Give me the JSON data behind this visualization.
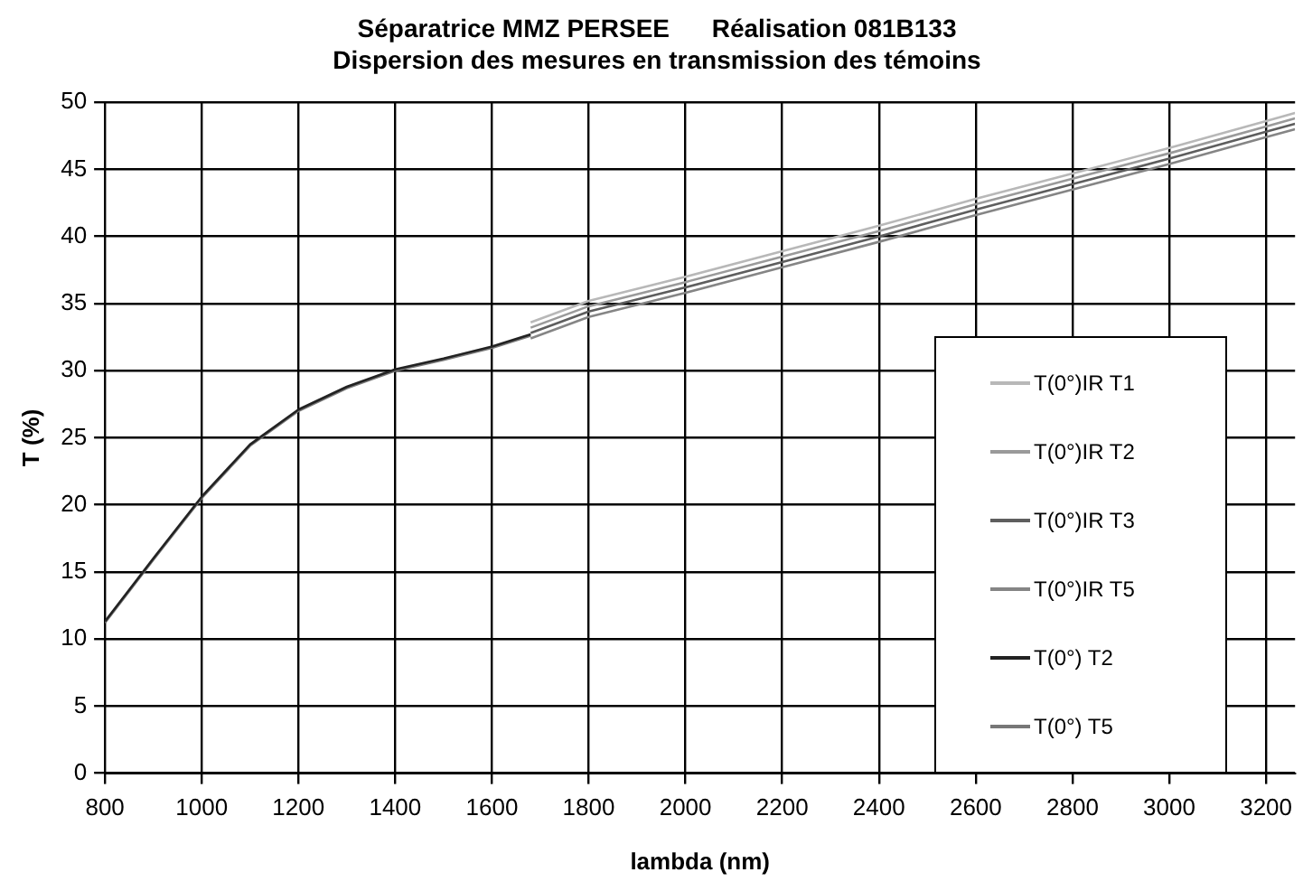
{
  "chart_data": {
    "type": "line",
    "title": "Séparatrice MMZ PERSEE      Réalisation 081B133",
    "subtitle": "Dispersion des mesures en transmission des témoins",
    "xlabel": "lambda (nm)",
    "ylabel": "T (%)",
    "xlim": [
      800,
      3260
    ],
    "xticks": [
      800,
      1000,
      1200,
      1400,
      1600,
      1800,
      2000,
      2200,
      2400,
      2600,
      2800,
      3000,
      3200
    ],
    "ylim": [
      0,
      50
    ],
    "yticks": [
      0,
      5,
      10,
      15,
      20,
      25,
      30,
      35,
      40,
      45,
      50
    ],
    "grid": true,
    "legend": "right",
    "marker": "none",
    "line_style": "solid",
    "series": [
      {
        "name": "T(0°)IR T1",
        "color": "#b8b8b8",
        "x": [
          1680,
          1800,
          2000,
          2200,
          2400,
          2600,
          2800,
          3000,
          3200,
          3260
        ],
        "values": [
          33.6,
          35.2,
          37.0,
          38.9,
          40.8,
          42.8,
          44.7,
          46.6,
          48.6,
          49.2
        ]
      },
      {
        "name": "T(0°)IR T2",
        "color": "#9a9a9a",
        "x": [
          1680,
          1800,
          2000,
          2200,
          2400,
          2600,
          2800,
          3000,
          3200,
          3260
        ],
        "values": [
          33.2,
          34.8,
          36.6,
          38.5,
          40.4,
          42.4,
          44.3,
          46.2,
          48.2,
          48.8
        ]
      },
      {
        "name": "T(0°)IR T3",
        "color": "#5e5e5e",
        "x": [
          1680,
          1800,
          2000,
          2200,
          2400,
          2600,
          2800,
          3000,
          3200,
          3260
        ],
        "values": [
          32.8,
          34.4,
          36.2,
          38.1,
          40.0,
          42.0,
          43.9,
          45.8,
          47.8,
          48.4
        ]
      },
      {
        "name": "T(0°)IR T5",
        "color": "#858585",
        "x": [
          1680,
          1800,
          2000,
          2200,
          2400,
          2600,
          2800,
          3000,
          3200,
          3260
        ],
        "values": [
          32.4,
          34.0,
          35.8,
          37.7,
          39.6,
          41.6,
          43.5,
          45.4,
          47.4,
          48.0
        ]
      },
      {
        "name": "T(0°) T2",
        "color": "#222222",
        "x": [
          800,
          900,
          1000,
          1100,
          1200,
          1300,
          1400,
          1500,
          1600,
          1680
        ],
        "values": [
          11.3,
          16.0,
          20.6,
          24.5,
          27.1,
          28.8,
          30.1,
          30.9,
          31.8,
          32.7
        ]
      },
      {
        "name": "T(0°) T5",
        "color": "#777777",
        "x": [
          800,
          900,
          1000,
          1100,
          1200,
          1300,
          1400,
          1500,
          1600,
          1680
        ],
        "values": [
          11.2,
          15.9,
          20.5,
          24.4,
          27.0,
          28.7,
          30.0,
          30.8,
          31.7,
          32.6
        ]
      }
    ]
  }
}
